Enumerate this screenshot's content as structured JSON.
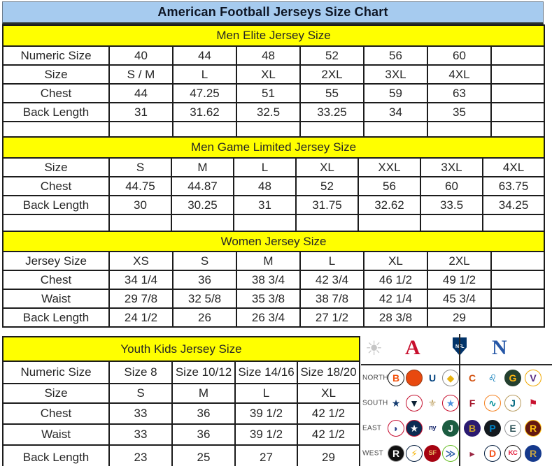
{
  "title": "American Football Jerseys Size Chart",
  "colors": {
    "title_bg": "#A6CBEF",
    "section_bg": "#FFFF00",
    "border": "#1c1c1c",
    "afc_red": "#C8102E",
    "nfc_blue": "#2657A7",
    "nfl_navy": "#013369",
    "starburst_silver": "#c6c6c6"
  },
  "tables": [
    {
      "id": "men-elite",
      "title": "Men Elite Jersey Size",
      "rows": [
        {
          "label": "Numeric Size",
          "cells": [
            "40",
            "44",
            "48",
            "52",
            "56",
            "60"
          ]
        },
        {
          "label": "Size",
          "cells": [
            "S / M",
            "L",
            "XL",
            "2XL",
            "3XL",
            "4XL"
          ]
        },
        {
          "label": "Chest",
          "cells": [
            "44",
            "47.25",
            "51",
            "55",
            "59",
            "63"
          ]
        },
        {
          "label": "Back Length",
          "cells": [
            "31",
            "31.62",
            "32.5",
            "33.25",
            "34",
            "35"
          ]
        }
      ]
    },
    {
      "id": "men-game-limited",
      "title": "Men Game Limited Jersey Size",
      "rows": [
        {
          "label": "Size",
          "cells": [
            "S",
            "M",
            "L",
            "XL",
            "XXL",
            "3XL",
            "4XL"
          ]
        },
        {
          "label": "Chest",
          "cells": [
            "44.75",
            "44.87",
            "48",
            "52",
            "56",
            "60",
            "63.75"
          ]
        },
        {
          "label": "Back Length",
          "cells": [
            "30",
            "30.25",
            "31",
            "31.75",
            "32.62",
            "33.5",
            "34.25"
          ]
        }
      ]
    },
    {
      "id": "women",
      "title": "Women Jersey Size",
      "rows": [
        {
          "label": "Jersey Size",
          "cells": [
            "XS",
            "S",
            "M",
            "L",
            "XL",
            "2XL"
          ]
        },
        {
          "label": "Chest",
          "cells": [
            "34 1/4",
            "36",
            "38 3/4",
            "42 3/4",
            "46 1/2",
            "49 1/2"
          ]
        },
        {
          "label": "Waist",
          "cells": [
            "29 7/8",
            "32 5/8",
            "35 3/8",
            "38 7/8",
            "42 1/4",
            "45 3/4"
          ]
        },
        {
          "label": "Back Length",
          "cells": [
            "24 1/2",
            "26",
            "26 3/4",
            "27 1/2",
            "28 3/8",
            "29"
          ]
        }
      ]
    },
    {
      "id": "youth",
      "title": "Youth Kids Jersey Size",
      "rows": [
        {
          "label": "Numeric Size",
          "cells": [
            "Size 8",
            "Size 10/12",
            "Size 14/16",
            "Size 18/20"
          ],
          "small": true
        },
        {
          "label": "Size",
          "cells": [
            "S",
            "M",
            "L",
            "XL"
          ]
        },
        {
          "label": "Chest",
          "cells": [
            "33",
            "36",
            "39 1/2",
            "42 1/2"
          ]
        },
        {
          "label": "Waist",
          "cells": [
            "33",
            "36",
            "39 1/2",
            "42 1/2"
          ]
        },
        {
          "label": "Back Length",
          "cells": [
            "23",
            "25",
            "27",
            "29"
          ]
        }
      ]
    }
  ],
  "nfl": {
    "header_icons": [
      {
        "name": "starburst-icon",
        "glyph": "☀",
        "color": "#c6c6c6"
      },
      {
        "name": "afc-logo",
        "glyph": "A",
        "color": "#C8102E"
      },
      {
        "name": "nfl-shield-logo",
        "glyph": "NFL",
        "color": "#013369"
      },
      {
        "name": "nfc-logo",
        "glyph": "N",
        "color": "#2657A7"
      }
    ],
    "rows": [
      {
        "label": "NORTH",
        "afc": [
          {
            "name": "bengals",
            "glyph": "B",
            "fg": "#F3520D",
            "bg": "#ffffff",
            "bd": "#1a1a1a"
          },
          {
            "name": "browns",
            "glyph": "",
            "fg": "#ffffff",
            "bg": "#E8490F",
            "bd": "#9a3c14"
          },
          {
            "name": "colts",
            "glyph": "U",
            "fg": "#01417e",
            "bg": "#ffffff",
            "bd": "transparent"
          },
          {
            "name": "steelers",
            "glyph": "◆",
            "fg": "#E8B210",
            "bg": "#ffffff",
            "bd": "#8a8a8a"
          }
        ],
        "nfc": [
          {
            "name": "bears",
            "glyph": "C",
            "fg": "#D35312",
            "bg": "#ffffff",
            "bd": "transparent"
          },
          {
            "name": "lions",
            "glyph": "♌",
            "fg": "#0076B6",
            "bg": "#ffffff",
            "bd": "transparent"
          },
          {
            "name": "packers",
            "glyph": "G",
            "fg": "#FFB612",
            "bg": "#24402F",
            "bd": "transparent"
          },
          {
            "name": "vikings",
            "glyph": "V",
            "fg": "#582C83",
            "bg": "#ffffff",
            "bd": "#F0A800"
          }
        ]
      },
      {
        "label": "SOUTH",
        "afc": [
          {
            "name": "cowboys-star",
            "glyph": "★",
            "fg": "#123A6F",
            "bg": "#ffffff",
            "bd": "transparent"
          },
          {
            "name": "texans",
            "glyph": "▼",
            "fg": "#0A1F33",
            "bg": "#ffffff",
            "bd": "#C41230"
          },
          {
            "name": "saints",
            "glyph": "⚜",
            "fg": "#BFA266",
            "bg": "#ffffff",
            "bd": "transparent"
          },
          {
            "name": "titans",
            "glyph": "★",
            "fg": "#5093DE",
            "bg": "#ffffff",
            "bd": "#C8102E"
          }
        ],
        "nfc": [
          {
            "name": "falcons",
            "glyph": "F",
            "fg": "#A6192E",
            "bg": "#ffffff",
            "bd": "transparent"
          },
          {
            "name": "dolphins",
            "glyph": "∿",
            "fg": "#009099",
            "bg": "#ffffff",
            "bd": "#F58220"
          },
          {
            "name": "jaguars",
            "glyph": "J",
            "fg": "#00677F",
            "bg": "#ffffff",
            "bd": "#B89B5E"
          },
          {
            "name": "buccaneers",
            "glyph": "⚑",
            "fg": "#C8102E",
            "bg": "#ffffff",
            "bd": "transparent"
          }
        ]
      },
      {
        "label": "EAST",
        "afc": [
          {
            "name": "bills",
            "glyph": "◗",
            "fg": "#27408B",
            "bg": "#ffffff",
            "bd": "#C60C30"
          },
          {
            "name": "patriots",
            "glyph": "★",
            "fg": "#ffffff",
            "bg": "#0B2B52",
            "bd": "#C8102E"
          },
          {
            "name": "giants",
            "glyph": "ny",
            "fg": "#15256B",
            "bg": "#ffffff",
            "bd": "transparent"
          },
          {
            "name": "jets",
            "glyph": "J",
            "fg": "#ffffff",
            "bg": "#1C5C41",
            "bd": "transparent"
          }
        ],
        "nfc": [
          {
            "name": "ravens",
            "glyph": "B",
            "fg": "#C9A227",
            "bg": "#2A1A70",
            "bd": "transparent"
          },
          {
            "name": "panthers",
            "glyph": "P",
            "fg": "#0085CA",
            "bg": "#141A1F",
            "bd": "transparent"
          },
          {
            "name": "eagles",
            "glyph": "E",
            "fg": "#2E5358",
            "bg": "#ffffff",
            "bd": "#98999B"
          },
          {
            "name": "redskins",
            "glyph": "R",
            "fg": "#FFC20E",
            "bg": "#641811",
            "bd": "#FFC20E"
          }
        ]
      },
      {
        "label": "WEST",
        "afc": [
          {
            "name": "raiders",
            "glyph": "R",
            "fg": "#ffffff",
            "bg": "#101010",
            "bd": "#9a9a9a"
          },
          {
            "name": "chargers",
            "glyph": "⚡",
            "fg": "#F7B50A",
            "bg": "#ffffff",
            "bd": "#0A2342"
          },
          {
            "name": "49ers",
            "glyph": "SF",
            "fg": "#E3B263",
            "bg": "#A60311",
            "bd": "transparent"
          },
          {
            "name": "seahawks",
            "glyph": "≫",
            "fg": "#2B5DA8",
            "bg": "#ffffff",
            "bd": "#69BE28"
          }
        ],
        "nfc": [
          {
            "name": "cardinals",
            "glyph": "▸",
            "fg": "#9B2743",
            "bg": "#ffffff",
            "bd": "transparent"
          },
          {
            "name": "broncos",
            "glyph": "D",
            "fg": "#F4531C",
            "bg": "#ffffff",
            "bd": "#0A2343"
          },
          {
            "name": "chiefs",
            "glyph": "KC",
            "fg": "#E31837",
            "bg": "#ffffff",
            "bd": "#1a1a1a"
          },
          {
            "name": "rams",
            "glyph": "R",
            "fg": "#C7A544",
            "bg": "#15398C",
            "bd": "transparent"
          }
        ]
      }
    ]
  }
}
